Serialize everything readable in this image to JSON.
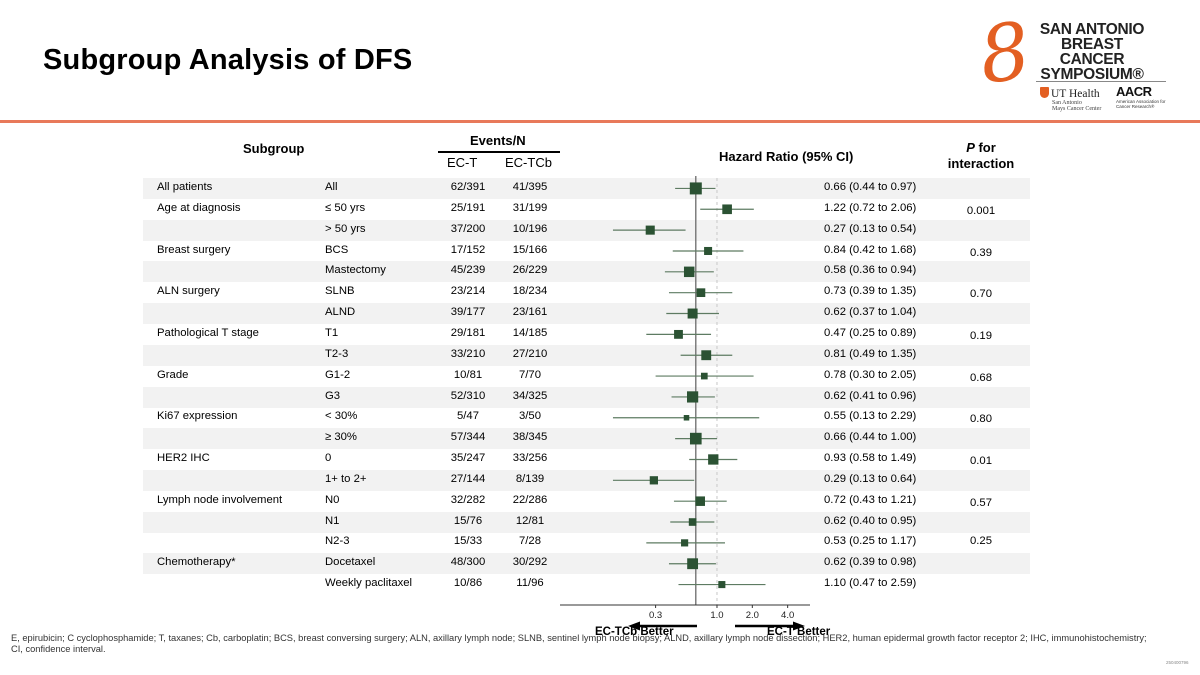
{
  "slide": {
    "title": "Subgroup Analysis of DFS",
    "logo": {
      "line1": "SAN ANTONIO",
      "line2": "BREAST CANCER",
      "line3": "SYMPOSIUM®",
      "partner1": "UT Health",
      "partner1_sub1": "San Antonio",
      "partner1_sub2": "Mays Cancer Center",
      "partner2": "AACR",
      "partner2_sub": "American Association for Cancer Research®"
    },
    "footnote": "E, epirubicin; C cyclophosphamide; T, taxanes; Cb, carboplatin; BCS, breast conversing surgery; ALN, axillary lymph node; SLNB, sentinel lymph node biopsy; ALND, axillary lymph node dissection; HER2, human epidermal growth factor receptor 2; IHC, immunohistochemistry; CI, confidence interval.",
    "code": "250400796"
  },
  "chart_data": {
    "type": "forest",
    "title": "Subgroup Analysis of DFS",
    "columns": {
      "subgroup": "Subgroup",
      "events_header": "Events/N",
      "arm1": "EC-T",
      "arm2": "EC-TCb",
      "hr": "Hazard Ratio (95% CI)",
      "p_italic": "P",
      "p_rest": " for",
      "p_line2": "interaction"
    },
    "x_scale": "log",
    "xlim": [
      0.046,
      6.2
    ],
    "x_ticks": [
      {
        "value": 0.3,
        "label": "0.3"
      },
      {
        "value": 1.0,
        "label": "1.0"
      },
      {
        "value": 2.0,
        "label": "2.0"
      },
      {
        "value": 4.0,
        "label": "4.0"
      }
    ],
    "reference_line_overall": 0.66,
    "null_line": 1.0,
    "left_label": "EC-TCb Better",
    "right_label": "EC-T Better",
    "marker_color": "#2b5233",
    "rows": [
      {
        "group": "All patients",
        "sub": "All",
        "ect": "62/391",
        "ectcb": "41/395",
        "hr": 0.66,
        "lo": 0.44,
        "hi": 0.97,
        "hr_text": "0.66 (0.44 to 0.97)",
        "p": "",
        "weight": 103
      },
      {
        "group": "Age at diagnosis",
        "sub": "≤ 50 yrs",
        "ect": "25/191",
        "ectcb": "31/199",
        "hr": 1.22,
        "lo": 0.72,
        "hi": 2.06,
        "hr_text": "1.22 (0.72 to 2.06)",
        "p": "0.001",
        "weight": 56
      },
      {
        "group": "",
        "sub": "> 50 yrs",
        "ect": "37/200",
        "ectcb": "10/196",
        "hr": 0.27,
        "lo": 0.13,
        "hi": 0.54,
        "hr_text": "0.27 (0.13 to 0.54)",
        "p": "",
        "weight": 47
      },
      {
        "group": "Breast surgery",
        "sub": "BCS",
        "ect": "17/152",
        "ectcb": "15/166",
        "hr": 0.84,
        "lo": 0.42,
        "hi": 1.68,
        "hr_text": "0.84 (0.42 to 1.68)",
        "p": "0.39",
        "weight": 32
      },
      {
        "group": "",
        "sub": "Mastectomy",
        "ect": "45/239",
        "ectcb": "26/229",
        "hr": 0.58,
        "lo": 0.36,
        "hi": 0.94,
        "hr_text": "0.58 (0.36 to 0.94)",
        "p": "",
        "weight": 71
      },
      {
        "group": "ALN surgery",
        "sub": "SLNB",
        "ect": "23/214",
        "ectcb": "18/234",
        "hr": 0.73,
        "lo": 0.39,
        "hi": 1.35,
        "hr_text": "0.73 (0.39 to 1.35)",
        "p": "0.70",
        "weight": 41
      },
      {
        "group": "",
        "sub": "ALND",
        "ect": "39/177",
        "ectcb": "23/161",
        "hr": 0.62,
        "lo": 0.37,
        "hi": 1.04,
        "hr_text": "0.62 (0.37 to 1.04)",
        "p": "",
        "weight": 62
      },
      {
        "group": "Pathological T stage",
        "sub": "T1",
        "ect": "29/181",
        "ectcb": "14/185",
        "hr": 0.47,
        "lo": 0.25,
        "hi": 0.89,
        "hr_text": "0.47 (0.25 to 0.89)",
        "p": "0.19",
        "weight": 43
      },
      {
        "group": "",
        "sub": "T2-3",
        "ect": "33/210",
        "ectcb": "27/210",
        "hr": 0.81,
        "lo": 0.49,
        "hi": 1.35,
        "hr_text": "0.81 (0.49 to 1.35)",
        "p": "",
        "weight": 60
      },
      {
        "group": "Grade",
        "sub": "G1-2",
        "ect": "10/81",
        "ectcb": "7/70",
        "hr": 0.78,
        "lo": 0.3,
        "hi": 2.05,
        "hr_text": "0.78 (0.30 to 2.05)",
        "p": "0.68",
        "weight": 17
      },
      {
        "group": "",
        "sub": "G3",
        "ect": "52/310",
        "ectcb": "34/325",
        "hr": 0.62,
        "lo": 0.41,
        "hi": 0.96,
        "hr_text": "0.62 (0.41 to 0.96)",
        "p": "",
        "weight": 86
      },
      {
        "group": "Ki67 expression",
        "sub": "< 30%",
        "ect": "5/47",
        "ectcb": "3/50",
        "hr": 0.55,
        "lo": 0.13,
        "hi": 2.29,
        "hr_text": "0.55 (0.13 to 2.29)",
        "p": "0.80",
        "weight": 8
      },
      {
        "group": "",
        "sub": "≥ 30%",
        "ect": "57/344",
        "ectcb": "38/345",
        "hr": 0.66,
        "lo": 0.44,
        "hi": 1.0,
        "hr_text": "0.66 (0.44 to 1.00)",
        "p": "",
        "weight": 95
      },
      {
        "group": "HER2 IHC",
        "sub": "0",
        "ect": "35/247",
        "ectcb": "33/256",
        "hr": 0.93,
        "lo": 0.58,
        "hi": 1.49,
        "hr_text": "0.93 (0.58 to 1.49)",
        "p": "0.01",
        "weight": 68
      },
      {
        "group": "",
        "sub": "1+ to 2+",
        "ect": "27/144",
        "ectcb": "8/139",
        "hr": 0.29,
        "lo": 0.13,
        "hi": 0.64,
        "hr_text": "0.29 (0.13 to 0.64)",
        "p": "",
        "weight": 35
      },
      {
        "group": "Lymph node involvement",
        "sub": "N0",
        "ect": "32/282",
        "ectcb": "22/286",
        "hr": 0.72,
        "lo": 0.43,
        "hi": 1.21,
        "hr_text": "0.72 (0.43 to 1.21)",
        "p": "0.57",
        "weight": 54
      },
      {
        "group": "",
        "sub": "N1",
        "ect": "15/76",
        "ectcb": "12/81",
        "hr": 0.62,
        "lo": 0.4,
        "hi": 0.95,
        "hr_text": "0.62 (0.40 to 0.95)",
        "p": "",
        "weight": 27
      },
      {
        "group": "",
        "sub": "N2-3",
        "ect": "15/33",
        "ectcb": "7/28",
        "hr": 0.53,
        "lo": 0.25,
        "hi": 1.17,
        "hr_text": "0.53 (0.25 to 1.17)",
        "p": "0.25",
        "weight": 22
      },
      {
        "group": "Chemotherapy*",
        "sub": "Docetaxel",
        "ect": "48/300",
        "ectcb": "30/292",
        "hr": 0.62,
        "lo": 0.39,
        "hi": 0.98,
        "hr_text": "0.62 (0.39 to 0.98)",
        "p": "",
        "weight": 78
      },
      {
        "group": "",
        "sub": "Weekly paclitaxel",
        "ect": "10/86",
        "ectcb": "11/96",
        "hr": 1.1,
        "lo": 0.47,
        "hi": 2.59,
        "hr_text": "1.10 (0.47 to 2.59)",
        "p": "",
        "weight": 21
      }
    ]
  }
}
